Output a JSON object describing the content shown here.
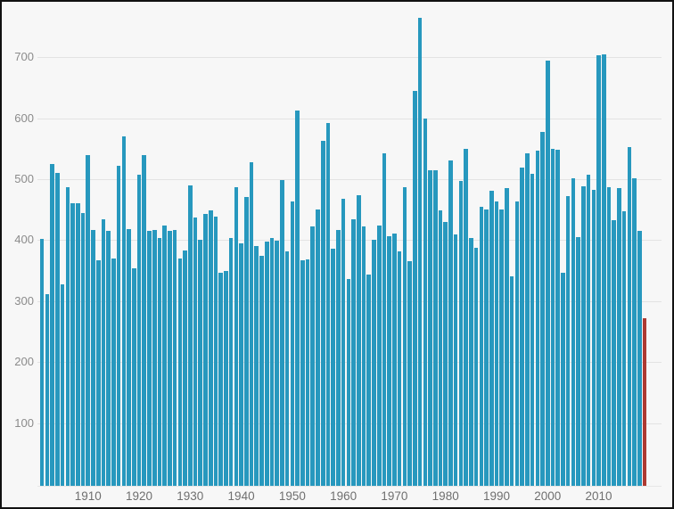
{
  "chart_data": {
    "type": "bar",
    "title": "",
    "xlabel": "",
    "ylabel": "",
    "x_start_year": 1901,
    "x_end_year": 2019,
    "years": [
      1901,
      1902,
      1903,
      1904,
      1905,
      1906,
      1907,
      1908,
      1909,
      1910,
      1911,
      1912,
      1913,
      1914,
      1915,
      1916,
      1917,
      1918,
      1919,
      1920,
      1921,
      1922,
      1923,
      1924,
      1925,
      1926,
      1927,
      1928,
      1929,
      1930,
      1931,
      1932,
      1933,
      1934,
      1935,
      1936,
      1937,
      1938,
      1939,
      1940,
      1941,
      1942,
      1943,
      1944,
      1945,
      1946,
      1947,
      1948,
      1949,
      1950,
      1951,
      1952,
      1953,
      1954,
      1955,
      1956,
      1957,
      1958,
      1959,
      1960,
      1961,
      1962,
      1963,
      1964,
      1965,
      1966,
      1967,
      1968,
      1969,
      1970,
      1971,
      1972,
      1973,
      1974,
      1975,
      1976,
      1977,
      1978,
      1979,
      1980,
      1981,
      1982,
      1983,
      1984,
      1985,
      1986,
      1987,
      1988,
      1989,
      1990,
      1991,
      1992,
      1993,
      1994,
      1995,
      1996,
      1997,
      1998,
      1999,
      2000,
      2001,
      2002,
      2003,
      2004,
      2005,
      2006,
      2007,
      2008,
      2009,
      2010,
      2011,
      2012,
      2013,
      2014,
      2015,
      2016,
      2017,
      2018,
      2019
    ],
    "values": [
      405,
      315,
      528,
      513,
      330,
      490,
      463,
      463,
      447,
      542,
      420,
      370,
      437,
      418,
      373,
      525,
      573,
      421,
      356,
      510,
      542,
      418,
      419,
      406,
      427,
      418,
      420,
      373,
      386,
      492,
      440,
      404,
      446,
      452,
      441,
      350,
      353,
      407,
      490,
      398,
      473,
      530,
      393,
      377,
      401,
      406,
      402,
      502,
      385,
      467,
      616,
      370,
      372,
      426,
      453,
      566,
      595,
      389,
      420,
      471,
      339,
      437,
      477,
      425,
      347,
      403,
      427,
      545,
      409,
      414,
      384,
      490,
      368,
      648,
      768,
      603,
      517,
      518,
      452,
      433,
      533,
      412,
      500,
      553,
      406,
      391,
      457,
      453,
      484,
      466,
      453,
      489,
      343,
      467,
      522,
      545,
      512,
      550,
      580,
      697,
      553,
      551,
      350,
      475,
      505,
      408,
      491,
      510,
      485,
      706,
      708,
      490,
      436,
      488,
      451,
      556,
      505,
      418,
      275
    ],
    "highlight_year": 2019,
    "highlight_value": 275,
    "bar_color": "#2798be",
    "highlight_color": "#ad3a32",
    "background_color": "#f7f7f7",
    "gridline_color": "#e3e3e3",
    "grid": true,
    "legend_position": "none",
    "ylim": [
      0,
      775
    ],
    "yticks": [
      "100",
      "200",
      "300",
      "400",
      "500",
      "600",
      "700"
    ],
    "xticks": [
      "1910",
      "1920",
      "1930",
      "1940",
      "1950",
      "1960",
      "1970",
      "1980",
      "1990",
      "2000",
      "2010"
    ]
  }
}
